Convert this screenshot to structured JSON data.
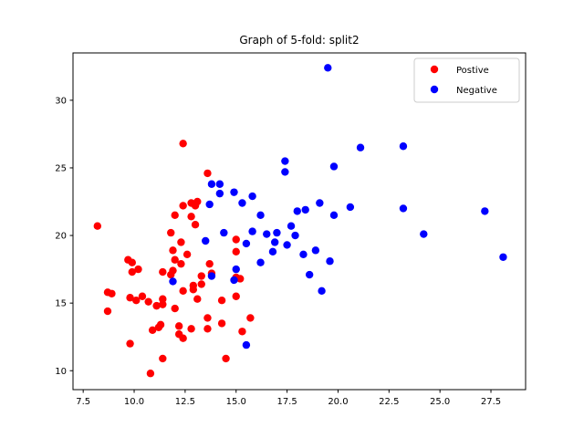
{
  "chart_data": {
    "type": "scatter",
    "title": "Graph of 5-fold: split2",
    "xlabel": "",
    "ylabel": "",
    "xlim": [
      7.0,
      29.2
    ],
    "ylim": [
      8.6,
      33.5
    ],
    "xticks": [
      "7.5",
      "10.0",
      "12.5",
      "15.0",
      "17.5",
      "20.0",
      "22.5",
      "25.0",
      "27.5"
    ],
    "xtick_values": [
      7.5,
      10.0,
      12.5,
      15.0,
      17.5,
      20.0,
      22.5,
      25.0,
      27.5
    ],
    "yticks": [
      "10",
      "15",
      "20",
      "25",
      "30"
    ],
    "ytick_values": [
      10,
      15,
      20,
      25,
      30
    ],
    "grid": false,
    "legend_position": "top-right",
    "series": [
      {
        "name": "Postive",
        "color": "#ff0000",
        "points": [
          [
            8.2,
            20.7
          ],
          [
            8.7,
            15.8
          ],
          [
            8.7,
            14.4
          ],
          [
            8.9,
            15.7
          ],
          [
            9.7,
            18.2
          ],
          [
            9.9,
            18.0
          ],
          [
            9.9,
            17.3
          ],
          [
            9.8,
            15.4
          ],
          [
            9.8,
            12.0
          ],
          [
            10.2,
            17.5
          ],
          [
            10.1,
            15.2
          ],
          [
            10.4,
            15.5
          ],
          [
            10.7,
            15.1
          ],
          [
            10.9,
            13.0
          ],
          [
            10.8,
            9.8
          ],
          [
            11.1,
            14.8
          ],
          [
            11.2,
            13.2
          ],
          [
            11.3,
            13.4
          ],
          [
            11.4,
            17.3
          ],
          [
            11.4,
            15.3
          ],
          [
            11.4,
            14.9
          ],
          [
            11.4,
            10.9
          ],
          [
            11.8,
            20.2
          ],
          [
            11.8,
            17.1
          ],
          [
            11.9,
            17.4
          ],
          [
            11.9,
            18.9
          ],
          [
            12.0,
            18.2
          ],
          [
            12.0,
            14.6
          ],
          [
            12.0,
            21.5
          ],
          [
            12.2,
            13.3
          ],
          [
            12.2,
            12.7
          ],
          [
            12.3,
            19.5
          ],
          [
            12.3,
            17.9
          ],
          [
            12.4,
            15.9
          ],
          [
            12.4,
            12.4
          ],
          [
            12.4,
            22.2
          ],
          [
            12.4,
            26.8
          ],
          [
            12.6,
            18.6
          ],
          [
            12.8,
            22.4
          ],
          [
            12.8,
            21.4
          ],
          [
            12.9,
            16.3
          ],
          [
            12.9,
            16.0
          ],
          [
            12.8,
            13.1
          ],
          [
            13.0,
            20.8
          ],
          [
            13.0,
            22.2
          ],
          [
            13.1,
            22.5
          ],
          [
            13.1,
            15.3
          ],
          [
            13.3,
            17.0
          ],
          [
            13.3,
            16.4
          ],
          [
            13.6,
            24.6
          ],
          [
            13.6,
            13.9
          ],
          [
            13.6,
            13.1
          ],
          [
            13.7,
            17.9
          ],
          [
            13.8,
            17.2
          ],
          [
            14.3,
            15.2
          ],
          [
            14.3,
            13.5
          ],
          [
            14.5,
            10.9
          ],
          [
            15.0,
            19.7
          ],
          [
            15.0,
            18.8
          ],
          [
            15.0,
            16.9
          ],
          [
            15.0,
            15.5
          ],
          [
            15.2,
            16.8
          ],
          [
            15.3,
            12.9
          ],
          [
            15.7,
            13.9
          ]
        ]
      },
      {
        "name": "Negative",
        "color": "#0000ff",
        "points": [
          [
            11.9,
            16.6
          ],
          [
            13.5,
            19.6
          ],
          [
            13.7,
            22.3
          ],
          [
            13.8,
            23.8
          ],
          [
            13.8,
            17.0
          ],
          [
            14.2,
            23.8
          ],
          [
            14.2,
            23.1
          ],
          [
            14.4,
            20.2
          ],
          [
            14.9,
            23.2
          ],
          [
            14.9,
            16.7
          ],
          [
            15.0,
            17.5
          ],
          [
            15.3,
            22.4
          ],
          [
            15.5,
            19.4
          ],
          [
            15.5,
            11.9
          ],
          [
            15.8,
            20.3
          ],
          [
            15.8,
            22.9
          ],
          [
            16.2,
            21.5
          ],
          [
            16.2,
            18.0
          ],
          [
            16.5,
            20.1
          ],
          [
            16.8,
            18.8
          ],
          [
            16.9,
            19.5
          ],
          [
            17.0,
            20.2
          ],
          [
            17.4,
            25.5
          ],
          [
            17.4,
            24.7
          ],
          [
            17.5,
            19.3
          ],
          [
            17.7,
            20.7
          ],
          [
            17.9,
            20.0
          ],
          [
            18.0,
            21.8
          ],
          [
            18.3,
            18.6
          ],
          [
            18.4,
            21.9
          ],
          [
            18.6,
            17.1
          ],
          [
            18.9,
            18.9
          ],
          [
            19.1,
            22.4
          ],
          [
            19.2,
            15.9
          ],
          [
            19.5,
            32.4
          ],
          [
            19.6,
            18.1
          ],
          [
            19.8,
            25.1
          ],
          [
            19.8,
            21.5
          ],
          [
            20.6,
            22.1
          ],
          [
            21.1,
            26.5
          ],
          [
            23.2,
            26.6
          ],
          [
            23.2,
            22.0
          ],
          [
            24.2,
            20.1
          ],
          [
            27.2,
            21.8
          ],
          [
            28.1,
            18.4
          ]
        ]
      }
    ]
  }
}
